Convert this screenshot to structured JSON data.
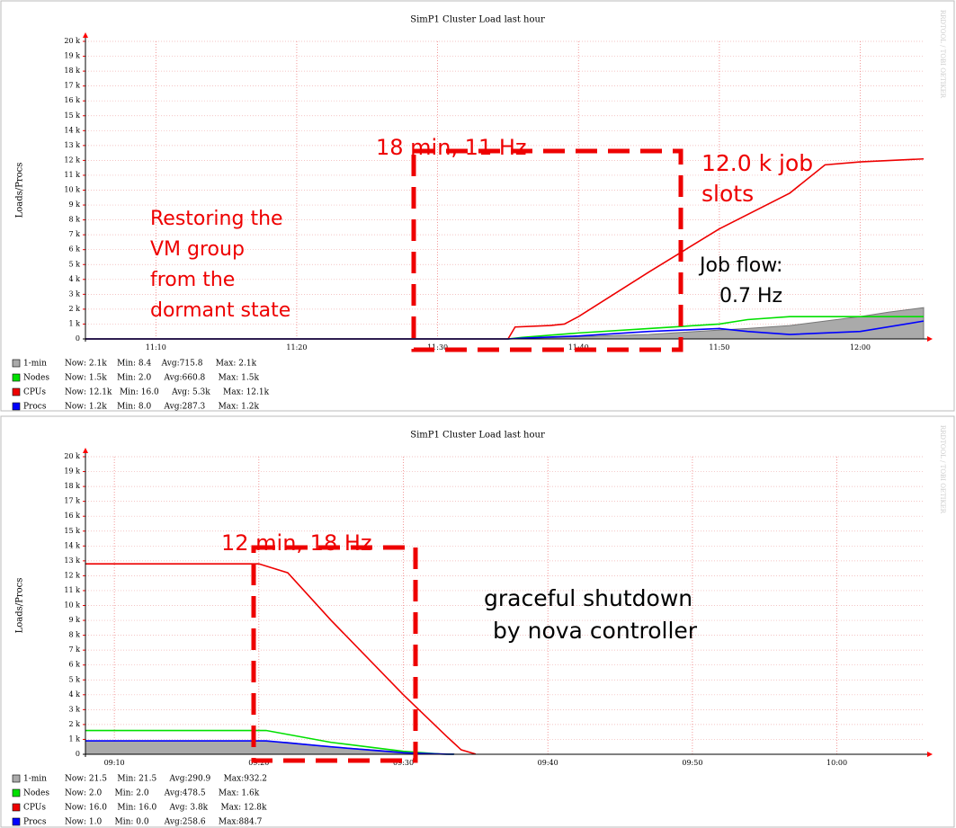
{
  "chart_data": [
    {
      "type": "line",
      "title": "SimP1 Cluster Load last hour",
      "y_label": "Loads/Procs",
      "side_text": "RRDTOOL / TOBI OETIKER",
      "xlim": [
        665,
        724.5
      ],
      "xticks": [
        {
          "value": 670,
          "label": "11:10"
        },
        {
          "value": 680,
          "label": "11:20"
        },
        {
          "value": 690,
          "label": "11:30"
        },
        {
          "value": 700,
          "label": "11:40"
        },
        {
          "value": 710,
          "label": "11:50"
        },
        {
          "value": 720,
          "label": "12:00"
        }
      ],
      "ylim": [
        0,
        20000
      ],
      "yticks": [
        0,
        {
          "value": 1000,
          "label": "1 k"
        },
        {
          "value": 2000,
          "label": "2 k"
        },
        {
          "value": 3000,
          "label": "3 k"
        },
        {
          "value": 4000,
          "label": "4 k"
        },
        {
          "value": 5000,
          "label": "5 k"
        },
        {
          "value": 6000,
          "label": "6 k"
        },
        {
          "value": 7000,
          "label": "7 k"
        },
        {
          "value": 8000,
          "label": "8 k"
        },
        {
          "value": 9000,
          "label": "9 k"
        },
        {
          "value": 10000,
          "label": "10 k"
        },
        {
          "value": 11000,
          "label": "11 k"
        },
        {
          "value": 12000,
          "label": "12 k"
        },
        {
          "value": 13000,
          "label": "13 k"
        },
        {
          "value": 14000,
          "label": "14 k"
        },
        {
          "value": 15000,
          "label": "15 k"
        },
        {
          "value": 16000,
          "label": "16 k"
        },
        {
          "value": 17000,
          "label": "17 k"
        },
        {
          "value": 18000,
          "label": "18 k"
        },
        {
          "value": 19000,
          "label": "19 k"
        },
        {
          "value": 20000,
          "label": "20 k"
        }
      ],
      "grid": true,
      "series": [
        {
          "name": "1-min",
          "color": "#aaaaaa",
          "fill": true,
          "stats": "Now: 2.1k    Min: 8.4    Avg:715.8     Max: 2.1k",
          "x": [
            665,
            695,
            697,
            700,
            705,
            710,
            712,
            715,
            720,
            722,
            724.5
          ],
          "values": [
            0,
            0,
            50,
            150,
            300,
            600,
            700,
            900,
            1500,
            1800,
            2100
          ]
        },
        {
          "name": "Nodes",
          "color": "#00e000",
          "stats": "Now: 1.5k    Min: 2.0     Avg:660.8     Max: 1.5k",
          "x": [
            665,
            695,
            696,
            700,
            705,
            710,
            712,
            715,
            724.5
          ],
          "values": [
            0,
            0,
            100,
            400,
            700,
            1000,
            1300,
            1500,
            1500
          ]
        },
        {
          "name": "CPUs",
          "color": "#ee0000",
          "stats": "Now: 12.1k   Min: 16.0     Avg: 5.3k     Max: 12.1k",
          "x": [
            665,
            695,
            695.5,
            698,
            699,
            700,
            705,
            710,
            715,
            717.5,
            720,
            724.5
          ],
          "values": [
            0,
            0,
            800,
            900,
            1000,
            1500,
            4500,
            7400,
            9800,
            11700,
            11900,
            12100
          ]
        },
        {
          "name": "Procs",
          "color": "#0000ff",
          "stats": "Now: 1.2k    Min: 8.0     Avg:287.3     Max: 1.2k",
          "x": [
            665,
            695,
            696,
            700,
            705,
            710,
            712,
            715,
            720,
            724.5
          ],
          "values": [
            0,
            0,
            50,
            200,
            500,
            700,
            500,
            300,
            500,
            1200
          ]
        }
      ],
      "annotations": [
        {
          "lines": [
            "18 min, 11 Hz"
          ]
        },
        {
          "lines": [
            "12.0 k job",
            "slots"
          ]
        },
        {
          "lines": [
            "Restoring the",
            "VM group",
            "from the",
            "dormant state"
          ]
        },
        {
          "lines": [
            "Job flow:",
            "0.7 Hz"
          ]
        }
      ]
    },
    {
      "type": "line",
      "title": "SimP1 Cluster Load last hour",
      "y_label": "Loads/Procs",
      "side_text": "RRDTOOL / TOBI OETIKER",
      "xlim": [
        548,
        606
      ],
      "xticks": [
        {
          "value": 550,
          "label": "09:10"
        },
        {
          "value": 560,
          "label": "09:20"
        },
        {
          "value": 570,
          "label": "09:30"
        },
        {
          "value": 580,
          "label": "09:40"
        },
        {
          "value": 590,
          "label": "09:50"
        },
        {
          "value": 600,
          "label": "10:00"
        }
      ],
      "ylim": [
        0,
        20000
      ],
      "yticks": [
        0,
        {
          "value": 1000,
          "label": "1 k"
        },
        {
          "value": 2000,
          "label": "2 k"
        },
        {
          "value": 3000,
          "label": "3 k"
        },
        {
          "value": 4000,
          "label": "4 k"
        },
        {
          "value": 5000,
          "label": "5 k"
        },
        {
          "value": 6000,
          "label": "6 k"
        },
        {
          "value": 7000,
          "label": "7 k"
        },
        {
          "value": 8000,
          "label": "8 k"
        },
        {
          "value": 9000,
          "label": "9 k"
        },
        {
          "value": 10000,
          "label": "10 k"
        },
        {
          "value": 11000,
          "label": "11 k"
        },
        {
          "value": 12000,
          "label": "12 k"
        },
        {
          "value": 13000,
          "label": "13 k"
        },
        {
          "value": 14000,
          "label": "14 k"
        },
        {
          "value": 15000,
          "label": "15 k"
        },
        {
          "value": 16000,
          "label": "16 k"
        },
        {
          "value": 17000,
          "label": "17 k"
        },
        {
          "value": 18000,
          "label": "18 k"
        },
        {
          "value": 19000,
          "label": "19 k"
        },
        {
          "value": 20000,
          "label": "20 k"
        }
      ],
      "grid": true,
      "series": [
        {
          "name": "1-min",
          "color": "#aaaaaa",
          "fill": true,
          "stats": "Now: 21.5    Min: 21.5     Avg:290.9     Max:932.2",
          "x": [
            548,
            560,
            562,
            565,
            570,
            572,
            573.5
          ],
          "values": [
            900,
            900,
            800,
            500,
            150,
            50,
            20
          ]
        },
        {
          "name": "Nodes",
          "color": "#00e000",
          "stats": "Now: 2.0     Min: 2.0      Avg:478.5     Max: 1.6k",
          "x": [
            548,
            560.5,
            565,
            570,
            572.5,
            573.5
          ],
          "values": [
            1600,
            1600,
            800,
            200,
            20,
            2
          ]
        },
        {
          "name": "CPUs",
          "color": "#ee0000",
          "stats": "Now: 16.0    Min: 16.0     Avg: 3.8k     Max: 12.8k",
          "x": [
            548,
            560,
            561,
            562,
            565,
            570,
            573,
            574,
            575
          ],
          "values": [
            12800,
            12800,
            12500,
            12200,
            9000,
            4000,
            1200,
            300,
            16
          ]
        },
        {
          "name": "Procs",
          "color": "#0000ff",
          "stats": "Now: 1.0     Min: 0.0      Avg:258.6     Max:884.7",
          "x": [
            548,
            560.5,
            565,
            570,
            573,
            573.5
          ],
          "values": [
            900,
            900,
            500,
            100,
            5,
            1
          ]
        }
      ],
      "annotations": [
        {
          "lines": [
            "12 min, 18 Hz"
          ]
        },
        {
          "lines": [
            "graceful shutdown",
            "by nova controller"
          ]
        }
      ]
    }
  ]
}
